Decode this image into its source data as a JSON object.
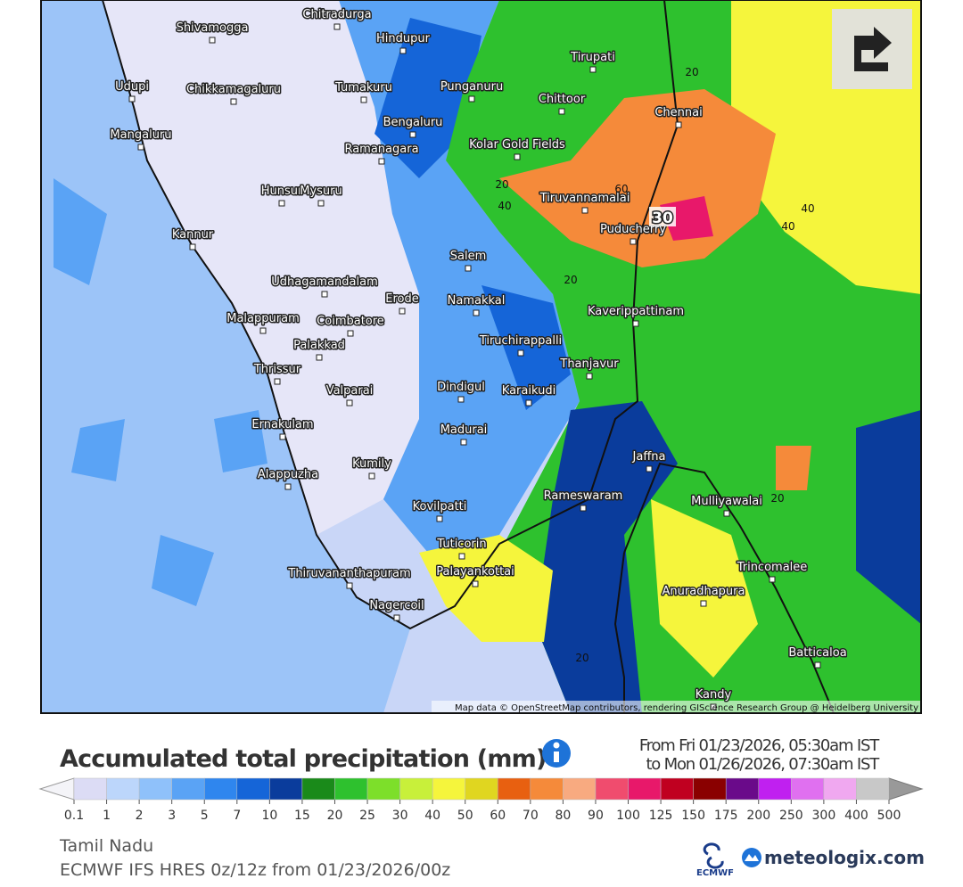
{
  "map": {
    "cities": [
      "Shivamogga",
      "Chitradurga",
      "Hindupur",
      "Tirupati",
      "Udupi",
      "Chikkamagaluru",
      "Tumakuru",
      "Punganuru",
      "Chittoor",
      "Chennai",
      "Mangaluru",
      "Bengaluru",
      "Kolar Gold Fields",
      "Ramanagara",
      "Tiruvannamalai",
      "Puducherry",
      "Hunsur",
      "Mysuru",
      "Kannur",
      "Salem",
      "Udhagamandalam",
      "Erode",
      "Namakkal",
      "Kaverippattinam",
      "Malappuram",
      "Coimbatore",
      "Palakkad",
      "Tiruchirappalli",
      "Thanjavur",
      "Thrissur",
      "Valparai",
      "Dindigul",
      "Karaikudi",
      "Ernakulam",
      "Madurai",
      "Jaffna",
      "Kumily",
      "Alappuzha",
      "Rameswaram",
      "Mulliyawalai",
      "Kovilpatti",
      "Tuticorin",
      "Trincomalee",
      "Thiruvananthapuram",
      "Palayankottai",
      "Anuradhapura",
      "Nagercoil",
      "Batticaloa",
      "Kandy"
    ],
    "contour_labels": [
      "20",
      "20",
      "40",
      "60",
      "40",
      "40",
      "20",
      "20",
      "20"
    ],
    "peak_label": "30",
    "attribution": "Map data © OpenStreetMap contributors, rendering GIScience Research Group @ Heidelberg University"
  },
  "legend": {
    "title": "Accumulated total precipitation (mm)",
    "period": [
      "From Fri 01/23/2026, 05:30am IST",
      "to Mon 01/26/2026, 07:30am IST"
    ],
    "colors": [
      "#dcdcf5",
      "#bcd6fb",
      "#8fc1fa",
      "#5aa3f5",
      "#2f86ee",
      "#1565d8",
      "#0a3c9c",
      "#1a8a1a",
      "#2ec12e",
      "#7ddf2a",
      "#c8f03a",
      "#f5f53c",
      "#e0d620",
      "#e86010",
      "#f58a3a",
      "#f8aa80",
      "#f04c6e",
      "#e8186a",
      "#c00020",
      "#8a0000",
      "#6a0a8a",
      "#c020f0",
      "#e070f0",
      "#f0a8f0",
      "#c8c8c8"
    ],
    "ticks": [
      0.1,
      1,
      2,
      3,
      5,
      7,
      10,
      15,
      20,
      25,
      30,
      40,
      50,
      60,
      70,
      80,
      90,
      100,
      125,
      150,
      175,
      200,
      250,
      300,
      400,
      500
    ]
  },
  "footer": {
    "region": "Tamil Nadu",
    "model": "ECMWF IFS HRES 0z/12z from 01/23/2026/00z",
    "logos": [
      "ECMWF",
      "meteologix.com"
    ]
  }
}
